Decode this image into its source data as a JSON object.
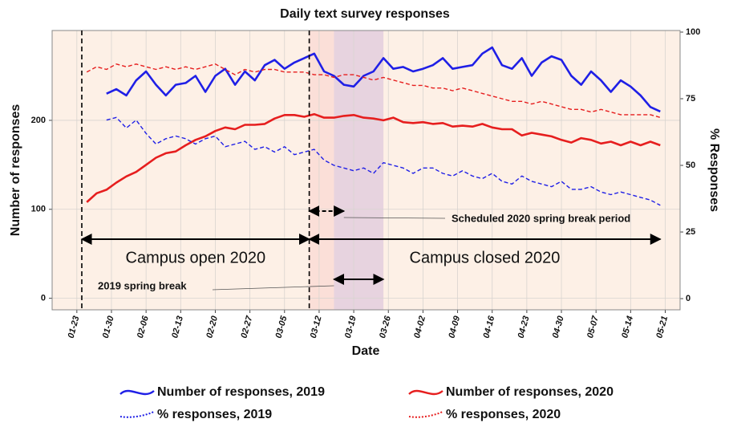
{
  "chart_data": {
    "type": "line",
    "title": "Daily text survey responses",
    "x_label": "Date",
    "y_label": "Number of responses",
    "y2_label": "% Responses",
    "x": [
      "01-25",
      "01-27",
      "01-29",
      "01-31",
      "02-02",
      "02-04",
      "02-06",
      "02-08",
      "02-10",
      "02-12",
      "02-14",
      "02-16",
      "02-18",
      "02-20",
      "02-22",
      "02-24",
      "02-26",
      "02-28",
      "03-01",
      "03-03",
      "03-05",
      "03-07",
      "03-09",
      "03-11",
      "03-13",
      "03-15",
      "03-17",
      "03-19",
      "03-21",
      "03-23",
      "03-25",
      "03-27",
      "03-29",
      "03-31",
      "04-02",
      "04-04",
      "04-06",
      "04-08",
      "04-10",
      "04-12",
      "04-14",
      "04-16",
      "04-18",
      "04-20",
      "04-22",
      "04-24",
      "04-26",
      "04-28",
      "04-30",
      "05-02",
      "05-04",
      "05-06",
      "05-08",
      "05-10",
      "05-12",
      "05-14",
      "05-16",
      "05-18",
      "05-20"
    ],
    "xlim": [
      "01-18",
      "05-24"
    ],
    "xticks": [
      "01-23",
      "01-30",
      "02-06",
      "02-13",
      "02-20",
      "02-27",
      "03-05",
      "03-12",
      "03-19",
      "03-26",
      "04-02",
      "04-09",
      "04-16",
      "04-23",
      "04-30",
      "05-07",
      "05-14",
      "05-21"
    ],
    "ylim": [
      -13,
      301
    ],
    "yticks": [
      0,
      100,
      200
    ],
    "y2lim": [
      -4.2,
      100.6
    ],
    "y2ticks": [
      0,
      25,
      50,
      75,
      100
    ],
    "grid": true,
    "background": "#fdf0e6",
    "series": [
      {
        "name": "Number of responses, 2019",
        "color": "#1f1fe6",
        "dash": "solid",
        "axis": "y",
        "values": [
          null,
          null,
          230,
          235,
          228,
          245,
          255,
          240,
          228,
          240,
          242,
          250,
          232,
          250,
          258,
          240,
          255,
          245,
          262,
          268,
          258,
          265,
          270,
          275,
          255,
          250,
          240,
          238,
          250,
          255,
          270,
          258,
          260,
          255,
          258,
          262,
          270,
          258,
          260,
          262,
          275,
          282,
          262,
          258,
          270,
          250,
          265,
          272,
          268,
          250,
          240,
          255,
          245,
          232,
          245,
          238,
          228,
          215,
          210
        ]
      },
      {
        "name": "Number of responses, 2020",
        "color": "#e61e1e",
        "dash": "solid",
        "axis": "y",
        "values": [
          108,
          118,
          122,
          130,
          137,
          142,
          150,
          158,
          163,
          165,
          172,
          178,
          182,
          188,
          192,
          190,
          195,
          195,
          196,
          202,
          206,
          206,
          204,
          207,
          203,
          203,
          205,
          206,
          203,
          202,
          200,
          203,
          198,
          197,
          198,
          196,
          197,
          193,
          194,
          193,
          196,
          192,
          190,
          190,
          183,
          186,
          184,
          182,
          178,
          175,
          180,
          178,
          174,
          176,
          172,
          176,
          172,
          176,
          172
        ]
      },
      {
        "name": "% responses, 2019",
        "color": "#1f1fe6",
        "dash": "dashed",
        "axis": "y2",
        "values": [
          null,
          null,
          67,
          68,
          64,
          67,
          62,
          58,
          60,
          61,
          60,
          58,
          60,
          61,
          57,
          58,
          59,
          56,
          57,
          55,
          57,
          54,
          55,
          56,
          52,
          50,
          49,
          48,
          49,
          47,
          51,
          50,
          49,
          47,
          49,
          49,
          47,
          46,
          48,
          46,
          45,
          47,
          44,
          43,
          46,
          44,
          43,
          42,
          44,
          41,
          41,
          42,
          40,
          39,
          40,
          39,
          38,
          37,
          35
        ]
      },
      {
        "name": "% responses, 2020",
        "color": "#e61e1e",
        "dash": "dashed",
        "axis": "y2",
        "values": [
          85,
          87,
          86,
          88,
          87,
          88,
          87,
          86,
          87,
          86,
          87,
          86,
          87,
          88,
          86,
          84,
          86,
          85,
          86,
          86,
          85,
          85,
          85,
          84,
          84,
          83,
          84,
          84,
          83,
          82,
          83,
          82,
          81,
          80,
          80,
          79,
          79,
          78,
          79,
          78,
          77,
          76,
          75,
          74,
          74,
          73,
          74,
          73,
          72,
          71,
          71,
          70,
          71,
          70,
          69,
          69,
          69,
          69,
          68
        ]
      }
    ],
    "shaded_periods": [
      {
        "start": "03-10",
        "end": "03-25",
        "color": "#f7b8b8"
      },
      {
        "start": "03-15",
        "end": "03-25",
        "color": "#b8b8f0"
      }
    ],
    "vlines": [
      "01-24",
      "03-10"
    ],
    "annotations": [
      {
        "text": "Campus open 2020",
        "from": "01-24",
        "to": "03-10"
      },
      {
        "text": "Campus closed 2020",
        "from": "03-10",
        "to": "05-20"
      },
      {
        "text": "Scheduled 2020 spring break period",
        "from": "03-10",
        "to": "03-17",
        "dashed": true
      },
      {
        "text": "2019 spring break",
        "from": "03-15",
        "to": "03-25"
      }
    ]
  }
}
